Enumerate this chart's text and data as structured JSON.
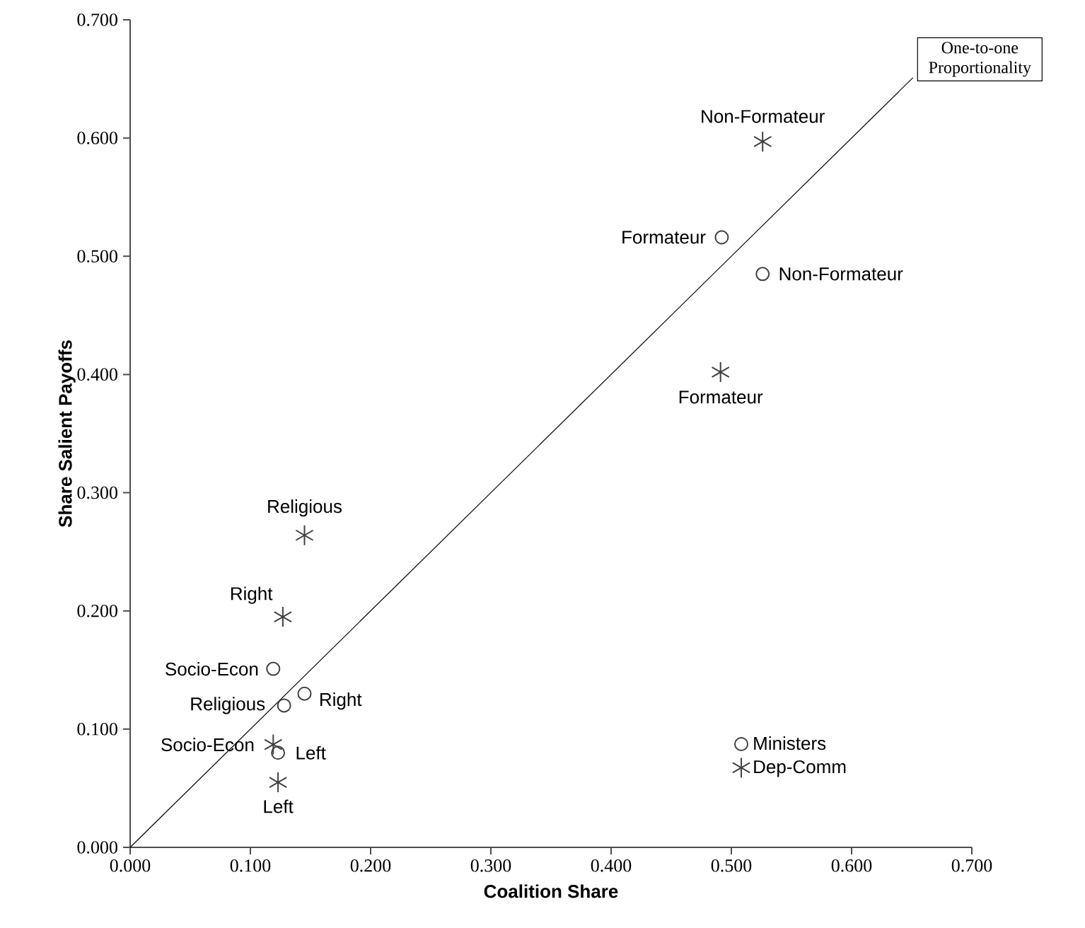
{
  "chart_data": {
    "type": "scatter",
    "xlabel": "Coalition Share",
    "ylabel": "Share Salient Payoffs",
    "xlim": [
      0,
      0.7
    ],
    "ylim": [
      0,
      0.7
    ],
    "xticks": [
      {
        "value": 0,
        "label": "0.000"
      },
      {
        "value": 0.1,
        "label": "0.100"
      },
      {
        "value": 0.2,
        "label": "0.200"
      },
      {
        "value": 0.3,
        "label": "0.300"
      },
      {
        "value": 0.4,
        "label": "0.400"
      },
      {
        "value": 0.5,
        "label": "0.500"
      },
      {
        "value": 0.6,
        "label": "0.600"
      },
      {
        "value": 0.7,
        "label": "0.700"
      }
    ],
    "yticks": [
      {
        "value": 0,
        "label": "0.000"
      },
      {
        "value": 0.1,
        "label": "0.100"
      },
      {
        "value": 0.2,
        "label": "0.200"
      },
      {
        "value": 0.3,
        "label": "0.300"
      },
      {
        "value": 0.4,
        "label": "0.400"
      },
      {
        "value": 0.5,
        "label": "0.500"
      },
      {
        "value": 0.6,
        "label": "0.600"
      },
      {
        "value": 0.7,
        "label": "0.700"
      }
    ],
    "grid": false,
    "legend": "bottom right",
    "series": [
      {
        "name": "Ministers",
        "color": "#404040",
        "marker": "circle",
        "x": [
          0.492,
          0.526,
          0.119,
          0.128,
          0.145,
          0.123
        ],
        "values": [
          0.516,
          0.485,
          0.151,
          0.12,
          0.13,
          0.08
        ]
      },
      {
        "name": "Dep-Comm",
        "color": "#404040",
        "marker": "cross",
        "x": [
          0.526,
          0.491,
          0.145,
          0.127,
          0.119,
          0.123
        ],
        "values": [
          0.597,
          0.402,
          0.264,
          0.195,
          0.087,
          0.055
        ]
      },
      {
        "name": "One-to-one Proportionality",
        "type": "line",
        "color": "#000000",
        "marker": "none",
        "x": [
          0,
          0.651
        ],
        "values": [
          0,
          0.651
        ]
      }
    ],
    "annotations": [
      {
        "text": "Non-Formateur",
        "x": 0.526,
        "y": 0.597
      },
      {
        "text": "Formateur",
        "x": 0.491,
        "y": 0.402
      },
      {
        "text": "Formateur",
        "x": 0.492,
        "y": 0.516
      },
      {
        "text": "Non-Formateur",
        "x": 0.526,
        "y": 0.485
      },
      {
        "text": "Religious",
        "x": 0.145,
        "y": 0.264
      },
      {
        "text": "Right",
        "x": 0.127,
        "y": 0.195
      },
      {
        "text": "Socio-Econ",
        "x": 0.119,
        "y": 0.151
      },
      {
        "text": "Religious",
        "x": 0.128,
        "y": 0.12
      },
      {
        "text": "Right",
        "x": 0.145,
        "y": 0.13
      },
      {
        "text": "Socio-Econ",
        "x": 0.119,
        "y": 0.087
      },
      {
        "text": "Left",
        "x": 0.123,
        "y": 0.08
      },
      {
        "text": "Left",
        "x": 0.123,
        "y": 0.055
      }
    ]
  }
}
